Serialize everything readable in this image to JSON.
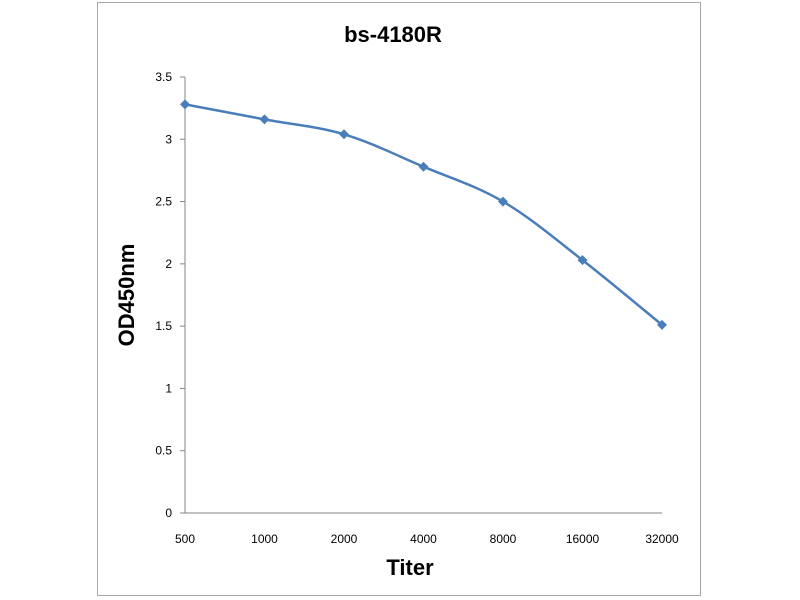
{
  "chart_data": {
    "type": "line",
    "title": "bs-4180R",
    "xlabel": "Titer",
    "ylabel": "OD450nm",
    "categories": [
      "500",
      "1000",
      "2000",
      "4000",
      "8000",
      "16000",
      "32000"
    ],
    "series": [
      {
        "values": [
          3.28,
          3.16,
          3.04,
          2.78,
          2.5,
          2.03,
          1.51
        ],
        "color": "#4a7ebb"
      }
    ],
    "ylim": [
      0,
      3.5
    ],
    "yticks": [
      "0",
      "0.5",
      "1",
      "1.5",
      "2",
      "2.5",
      "3",
      "3.5"
    ],
    "grid": false,
    "legend": "none",
    "marker": "diamond"
  }
}
